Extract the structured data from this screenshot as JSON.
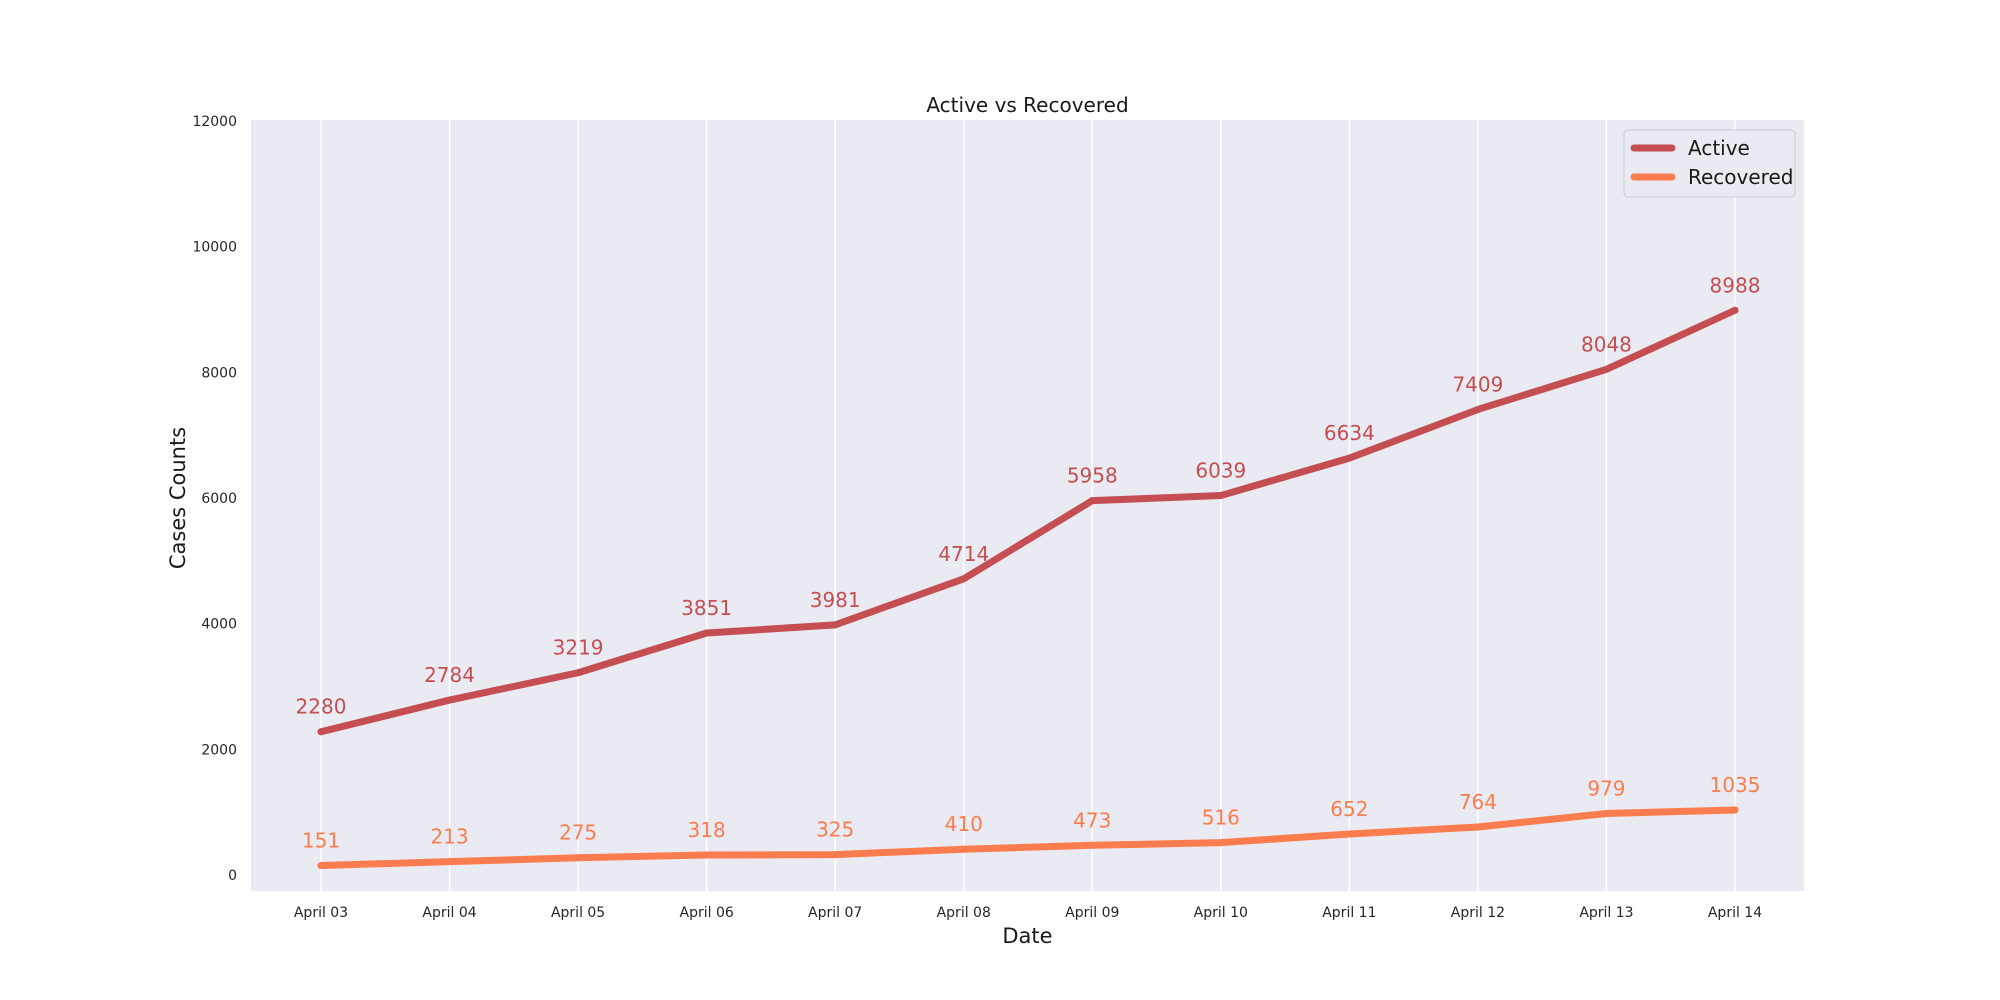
{
  "chart_data": {
    "type": "line",
    "title": "Active vs Recovered",
    "xlabel": "Date",
    "ylabel": "Cases Counts",
    "categories": [
      "April 03",
      "April 04",
      "April 05",
      "April 06",
      "April 07",
      "April 08",
      "April 09",
      "April 10",
      "April 11",
      "April 12",
      "April 13",
      "April 14"
    ],
    "series": [
      {
        "name": "Active",
        "color": "#c44e52",
        "values": [
          2280,
          2784,
          3219,
          3851,
          3981,
          4714,
          5958,
          6039,
          6634,
          7409,
          8048,
          8988
        ],
        "labels": [
          "2280",
          "2784",
          "3219",
          "3851",
          "3981",
          "4714",
          "5958",
          "6039",
          "6634",
          "7409",
          "8048",
          "8988"
        ]
      },
      {
        "name": "Recovered",
        "color": "#fb7d4f",
        "values": [
          151,
          213,
          275,
          318,
          325,
          410,
          473,
          516,
          652,
          764,
          979,
          1035
        ],
        "labels": [
          "151",
          "213",
          "275",
          "318",
          "325",
          "410",
          "473",
          "516",
          "652",
          "764",
          "979",
          "1035"
        ]
      }
    ],
    "ylim": [
      0,
      12000
    ],
    "yticks": [
      0,
      2000,
      4000,
      6000,
      8000,
      10000,
      12000
    ],
    "ytick_labels": [
      "0",
      "2000",
      "4000",
      "6000",
      "8000",
      "10000",
      "12000"
    ],
    "grid": "vertical",
    "legend": "top-right",
    "background": "#eaeaf2"
  }
}
